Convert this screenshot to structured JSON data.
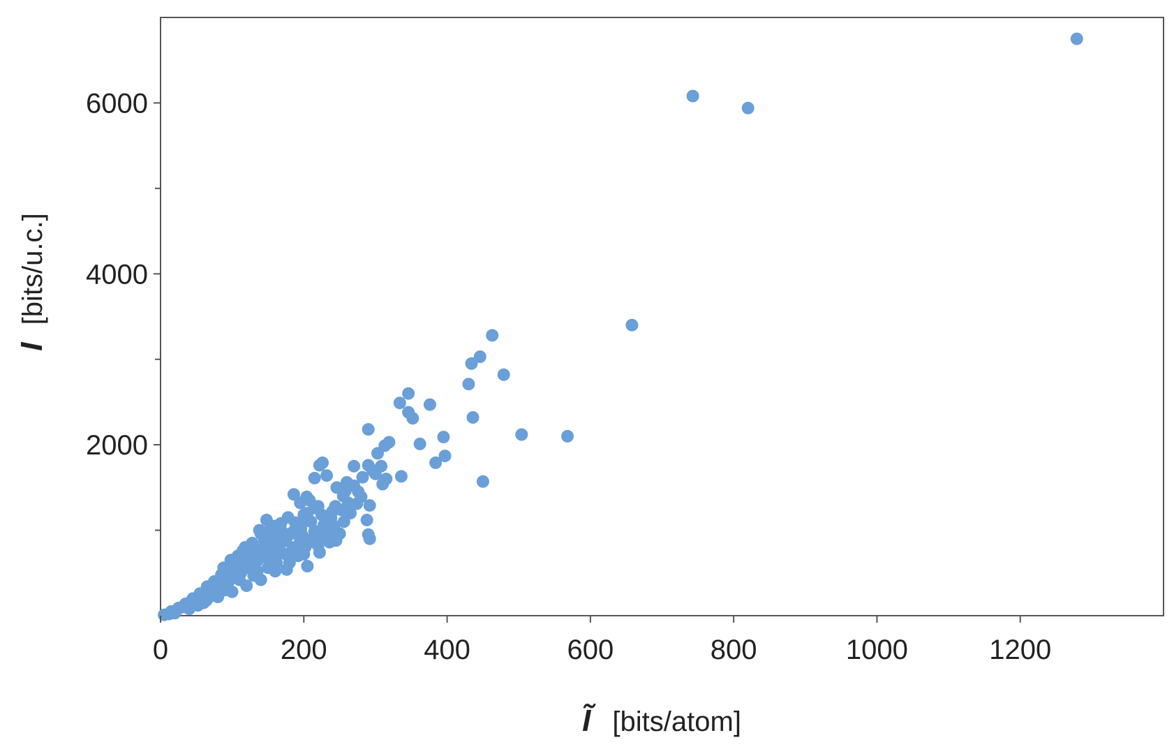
{
  "chart_data": {
    "type": "scatter",
    "title": "",
    "xlabel": {
      "symbol": "Ĩ",
      "unit": "[bits/atom]"
    },
    "ylabel": {
      "symbol": "I",
      "unit": "[bits/u.c.]"
    },
    "xlim": [
      0,
      1400
    ],
    "ylim": [
      0,
      7000
    ],
    "x_ticks": [
      {
        "value": 0,
        "label": "0"
      },
      {
        "value": 200,
        "label": "200"
      },
      {
        "value": 400,
        "label": "400"
      },
      {
        "value": 600,
        "label": "600"
      },
      {
        "value": 800,
        "label": "800"
      },
      {
        "value": 1000,
        "label": "1000"
      },
      {
        "value": 1200,
        "label": "1200"
      }
    ],
    "y_ticks": [
      {
        "value": 2000,
        "label": "2000"
      },
      {
        "value": 4000,
        "label": "4000"
      },
      {
        "value": 6000,
        "label": "6000"
      }
    ],
    "y_minor_ticks": [
      1000,
      3000,
      5000
    ],
    "grid": false,
    "marker_color": "#6a9fd8",
    "series": [
      {
        "points": [
          [
            1279,
            6750
          ],
          [
            743,
            6080
          ],
          [
            820,
            5940
          ],
          [
            658,
            3400
          ],
          [
            463,
            3280
          ],
          [
            446,
            3030
          ],
          [
            434,
            2950
          ],
          [
            479,
            2820
          ],
          [
            430,
            2710
          ],
          [
            346,
            2600
          ],
          [
            334,
            2490
          ],
          [
            376,
            2470
          ],
          [
            346,
            2380
          ],
          [
            352,
            2310
          ],
          [
            436,
            2320
          ],
          [
            290,
            2180
          ],
          [
            395,
            2090
          ],
          [
            504,
            2120
          ],
          [
            568,
            2100
          ],
          [
            319,
            2030
          ],
          [
            313,
            1990
          ],
          [
            362,
            2010
          ],
          [
            303,
            1900
          ],
          [
            397,
            1870
          ],
          [
            384,
            1790
          ],
          [
            226,
            1790
          ],
          [
            222,
            1760
          ],
          [
            270,
            1750
          ],
          [
            290,
            1760
          ],
          [
            308,
            1750
          ],
          [
            300,
            1660
          ],
          [
            336,
            1630
          ],
          [
            315,
            1600
          ],
          [
            450,
            1570
          ],
          [
            310,
            1540
          ],
          [
            232,
            1640
          ],
          [
            215,
            1610
          ],
          [
            260,
            1560
          ],
          [
            246,
            1500
          ],
          [
            276,
            1450
          ],
          [
            255,
            1400
          ],
          [
            280,
            1390
          ],
          [
            292,
            1290
          ],
          [
            274,
            1310
          ],
          [
            240,
            1220
          ],
          [
            265,
            1200
          ],
          [
            230,
            1150
          ],
          [
            215,
            1260
          ],
          [
            200,
            1180
          ],
          [
            186,
            1420
          ],
          [
            208,
            1350
          ],
          [
            256,
            1100
          ],
          [
            242,
            1050
          ],
          [
            288,
            1120
          ],
          [
            290,
            950
          ],
          [
            292,
            900
          ],
          [
            236,
            860
          ],
          [
            222,
            740
          ],
          [
            215,
            990
          ],
          [
            196,
            1020
          ],
          [
            180,
            950
          ],
          [
            168,
            1080
          ],
          [
            152,
            1000
          ],
          [
            140,
            960
          ],
          [
            172,
            870
          ],
          [
            190,
            780
          ],
          [
            205,
            580
          ],
          [
            160,
            700
          ],
          [
            145,
            690
          ],
          [
            130,
            800
          ],
          [
            120,
            720
          ],
          [
            115,
            760
          ],
          [
            110,
            640
          ],
          [
            150,
            560
          ],
          [
            100,
            600
          ],
          [
            95,
            520
          ],
          [
            85,
            480
          ],
          [
            130,
            470
          ],
          [
            75,
            400
          ],
          [
            110,
            420
          ],
          [
            65,
            340
          ],
          [
            90,
            300
          ],
          [
            55,
            260
          ],
          [
            45,
            200
          ],
          [
            70,
            230
          ],
          [
            35,
            140
          ],
          [
            25,
            90
          ],
          [
            15,
            50
          ],
          [
            5,
            10
          ],
          [
            20,
            30
          ],
          [
            40,
            80
          ],
          [
            60,
            150
          ],
          [
            80,
            220
          ],
          [
            100,
            280
          ],
          [
            120,
            350
          ],
          [
            140,
            420
          ],
          [
            160,
            520
          ],
          [
            180,
            620
          ],
          [
            200,
            720
          ],
          [
            220,
            820
          ],
          [
            240,
            920
          ],
          [
            125,
            560
          ],
          [
            135,
            640
          ],
          [
            155,
            760
          ],
          [
            165,
            820
          ],
          [
            175,
            900
          ],
          [
            185,
            980
          ],
          [
            195,
            1060
          ],
          [
            210,
            1100
          ],
          [
            225,
            1180
          ],
          [
            235,
            1000
          ],
          [
            245,
            880
          ],
          [
            250,
            960
          ],
          [
            175,
            720
          ],
          [
            185,
            800
          ],
          [
            195,
            880
          ],
          [
            150,
            860
          ],
          [
            140,
            740
          ],
          [
            105,
            480
          ],
          [
            95,
            400
          ],
          [
            115,
            540
          ],
          [
            205,
            1200
          ],
          [
            220,
            1280
          ],
          [
            178,
            1150
          ],
          [
            160,
            1050
          ],
          [
            145,
            880
          ],
          [
            162,
            620
          ],
          [
            176,
            540
          ],
          [
            135,
            520
          ],
          [
            88,
            360
          ],
          [
            78,
            300
          ],
          [
            68,
            280
          ],
          [
            58,
            200
          ],
          [
            48,
            160
          ],
          [
            30,
            100
          ],
          [
            12,
            20
          ],
          [
            22,
            60
          ],
          [
            52,
            120
          ],
          [
            64,
            180
          ],
          [
            72,
            260
          ],
          [
            82,
            330
          ],
          [
            92,
            410
          ],
          [
            102,
            470
          ],
          [
            112,
            500
          ],
          [
            122,
            600
          ],
          [
            132,
            690
          ],
          [
            142,
            780
          ],
          [
            152,
            640
          ],
          [
            170,
            980
          ],
          [
            188,
            1090
          ],
          [
            198,
            940
          ],
          [
            212,
            900
          ],
          [
            228,
            1060
          ],
          [
            238,
            1140
          ],
          [
            252,
            1240
          ],
          [
            262,
            1320
          ],
          [
            270,
            1520
          ],
          [
            282,
            1620
          ],
          [
            296,
            1700
          ],
          [
            118,
            800
          ],
          [
            128,
            850
          ],
          [
            108,
            700
          ],
          [
            98,
            650
          ],
          [
            88,
            560
          ],
          [
            138,
            1000
          ],
          [
            148,
            1120
          ],
          [
            158,
            950
          ],
          [
            168,
            740
          ],
          [
            180,
            680
          ],
          [
            192,
            700
          ],
          [
            202,
            800
          ],
          [
            214,
            860
          ],
          [
            226,
            940
          ],
          [
            244,
            1280
          ],
          [
            258,
            1460
          ],
          [
            204,
            1390
          ],
          [
            195,
            1320
          ]
        ]
      }
    ]
  }
}
